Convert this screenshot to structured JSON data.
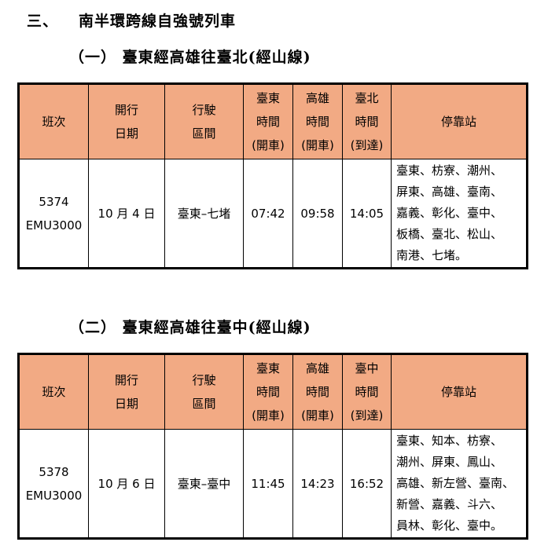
{
  "section": {
    "number": "三、",
    "title": "南半環跨線自強號列車"
  },
  "header_color": "#F2AA84",
  "tables": [
    {
      "subtitle": "（一） 臺東經高雄往臺北(經山線)",
      "headers": [
        [
          "班次"
        ],
        [
          "開行",
          "日期"
        ],
        [
          "行駛",
          "區間"
        ],
        [
          "臺東",
          "時間",
          "(開車)"
        ],
        [
          "高雄",
          "時間",
          "(開車)"
        ],
        [
          "臺北",
          "時間",
          "(到達)"
        ],
        [
          "停靠站"
        ]
      ],
      "row": {
        "train_no": "5374",
        "train_type": "EMU3000",
        "date": "10 月 4 日",
        "route": "臺東–七堵",
        "t1": "07:42",
        "t2": "09:58",
        "t3": "14:05",
        "stops": [
          "臺東、枋寮、潮州、",
          "屏東、高雄、臺南、",
          "嘉義、彰化、臺中、",
          "板橋、臺北、松山、",
          "南港、七堵。"
        ]
      }
    },
    {
      "subtitle": "（二） 臺東經高雄往臺中(經山線)",
      "headers": [
        [
          "班次"
        ],
        [
          "開行",
          "日期"
        ],
        [
          "行駛",
          "區間"
        ],
        [
          "臺東",
          "時間",
          "(開車)"
        ],
        [
          "高雄",
          "時間",
          "(開車)"
        ],
        [
          "臺中",
          "時間",
          "(到達)"
        ],
        [
          "停靠站"
        ]
      ],
      "row": {
        "train_no": "5378",
        "train_type": "EMU3000",
        "date": "10 月 6 日",
        "route": "臺東–臺中",
        "t1": "11:45",
        "t2": "14:23",
        "t3": "16:52",
        "stops": [
          "臺東、知本、枋寮、",
          "潮州、屏東、鳳山、",
          "高雄、新左營、臺南、",
          "新營、嘉義、斗六、",
          "員林、彰化、臺中。"
        ]
      }
    }
  ]
}
